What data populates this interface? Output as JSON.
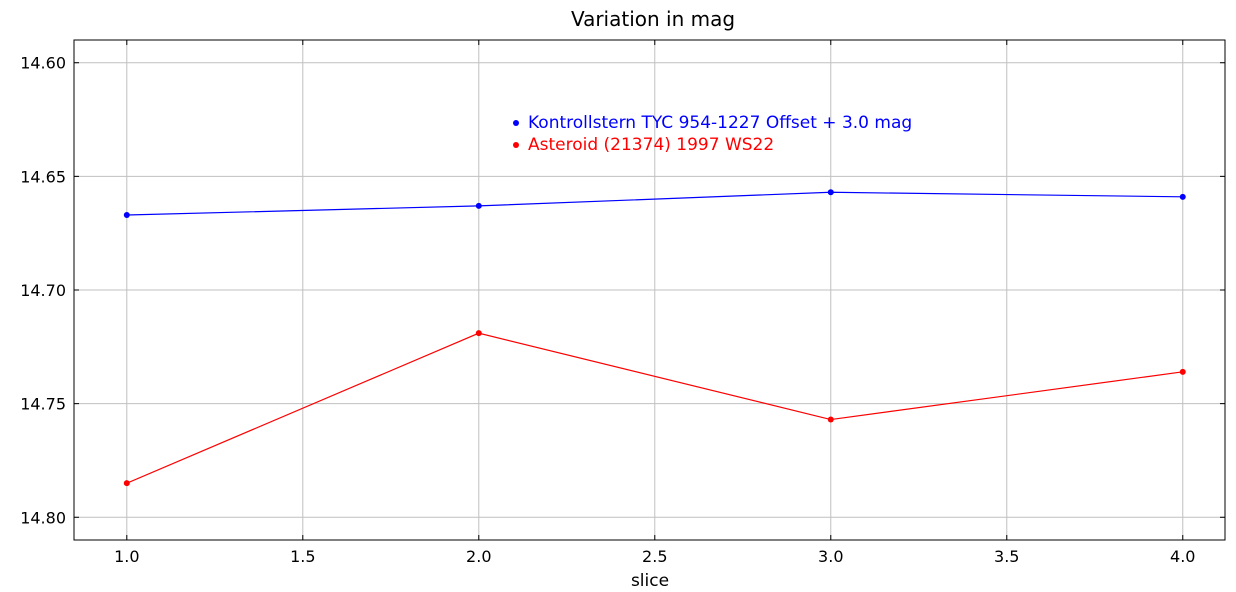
{
  "chart_data": {
    "type": "line",
    "title": "Variation in mag",
    "xlabel": "slice",
    "ylabel": "",
    "xlim": [
      0.85,
      4.12
    ],
    "ylim": [
      14.81,
      14.59
    ],
    "y_inverted": true,
    "grid": true,
    "legend_position": "top-center",
    "x_ticks": [
      "1.0",
      "1.5",
      "2.0",
      "2.5",
      "3.0",
      "3.5",
      "4.0"
    ],
    "y_ticks": [
      "14.60",
      "14.65",
      "14.70",
      "14.75",
      "14.80"
    ],
    "series": [
      {
        "name": "Kontrollstern TYC 954-1227 Offset + 3.0 mag",
        "color": "#0000ff",
        "x": [
          1.0,
          2.0,
          3.0,
          4.0
        ],
        "y": [
          14.667,
          14.663,
          14.657,
          14.659
        ]
      },
      {
        "name": "Asteroid (21374) 1997 WS22",
        "color": "#ff0000",
        "x": [
          1.0,
          2.0,
          3.0,
          4.0
        ],
        "y": [
          14.785,
          14.719,
          14.757,
          14.736
        ]
      }
    ]
  }
}
